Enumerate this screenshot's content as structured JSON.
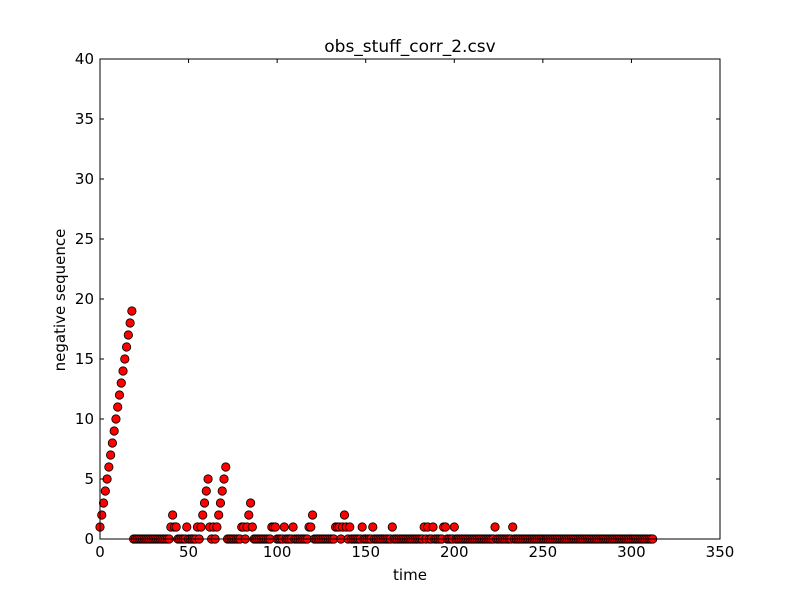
{
  "chart_data": {
    "type": "scatter",
    "title": "obs_stuff_corr_2.csv",
    "xlabel": "time",
    "ylabel": "negative sequence",
    "xlim": [
      0,
      350
    ],
    "ylim": [
      0,
      40
    ],
    "xticks": [
      0,
      50,
      100,
      150,
      200,
      250,
      300,
      350
    ],
    "yticks": [
      0,
      5,
      10,
      15,
      20,
      25,
      30,
      35,
      40
    ],
    "marker_color": "#ff0000",
    "marker_edge": "#000000",
    "grid": false,
    "series": [
      {
        "x": [
          0,
          1,
          2,
          3,
          4,
          5,
          6,
          7,
          8,
          9,
          10,
          11,
          12,
          13,
          14,
          15,
          16,
          17,
          18,
          19,
          20,
          21,
          22,
          23,
          24,
          25,
          26,
          27,
          28,
          29,
          30,
          31,
          32,
          33,
          34,
          35,
          36,
          37,
          38,
          39,
          40,
          41,
          42,
          43,
          44,
          45,
          46,
          47,
          48,
          49,
          50,
          51,
          52,
          53,
          54,
          55,
          56,
          57,
          58,
          59,
          60,
          61,
          62,
          63,
          64,
          65,
          66,
          67,
          68,
          69,
          70,
          71,
          72,
          73,
          74,
          75,
          76,
          77,
          78,
          79,
          80,
          81,
          82,
          83,
          84,
          85,
          86,
          87,
          88,
          89,
          90,
          91,
          92,
          93,
          94,
          95,
          96,
          97,
          98,
          99,
          100,
          101,
          102,
          103,
          104,
          105,
          106,
          107,
          108,
          109,
          110,
          111,
          112,
          113,
          114,
          115,
          116,
          117,
          118,
          119,
          120,
          121,
          122,
          123,
          124,
          125,
          126,
          127,
          128,
          129,
          130,
          131,
          132,
          133,
          134,
          135,
          136,
          137,
          138,
          139,
          140,
          141,
          142,
          143,
          144,
          145,
          146,
          147,
          148,
          149,
          150,
          151,
          152,
          153,
          154,
          155,
          156,
          157,
          158,
          159,
          160,
          161,
          162,
          163,
          164,
          165,
          166,
          167,
          168,
          169,
          170,
          171,
          172,
          173,
          174,
          175,
          176,
          177,
          178,
          179,
          180,
          181,
          182,
          183,
          184,
          185,
          186,
          187,
          188,
          189,
          190,
          191,
          192,
          193,
          194,
          195,
          196,
          197,
          198,
          199,
          200,
          201,
          202,
          203,
          204,
          205,
          206,
          207,
          208,
          209,
          210,
          211,
          212,
          213,
          214,
          215,
          216,
          217,
          218,
          219,
          220,
          221,
          222,
          223,
          224,
          225,
          226,
          227,
          228,
          229,
          230,
          231,
          232,
          233,
          234,
          235,
          236,
          237,
          238,
          239,
          240,
          241,
          242,
          243,
          244,
          245,
          246,
          247,
          248,
          249,
          250,
          251,
          252,
          253,
          254,
          255,
          256,
          257,
          258,
          259,
          260,
          261,
          262,
          263,
          264,
          265,
          266,
          267,
          268,
          269,
          270,
          271,
          272,
          273,
          274,
          275,
          276,
          277,
          278,
          279,
          280,
          281,
          282,
          283,
          284,
          285,
          286,
          287,
          288,
          289,
          290,
          291,
          292,
          293,
          294,
          295,
          296,
          297,
          298,
          299,
          300,
          301,
          302,
          303,
          304,
          305,
          306,
          307,
          308,
          309,
          310,
          311,
          312
        ],
        "y": [
          1,
          2,
          3,
          4,
          5,
          6,
          7,
          8,
          9,
          10,
          11,
          12,
          13,
          14,
          15,
          16,
          17,
          18,
          19,
          0,
          0,
          0,
          0,
          0,
          0,
          0,
          0,
          0,
          0,
          0,
          0,
          0,
          0,
          0,
          0,
          0,
          0,
          0,
          0,
          0,
          1,
          2,
          1,
          1,
          0,
          0,
          0,
          0,
          0,
          1,
          0,
          0,
          0,
          0,
          0,
          1,
          0,
          1,
          2,
          3,
          4,
          5,
          1,
          0,
          1,
          0,
          1,
          2,
          3,
          4,
          5,
          6,
          0,
          0,
          0,
          0,
          0,
          0,
          0,
          0,
          1,
          1,
          0,
          1,
          2,
          3,
          1,
          0,
          0,
          0,
          0,
          0,
          0,
          0,
          0,
          0,
          0,
          1,
          1,
          1,
          0,
          0,
          0,
          0,
          1,
          0,
          0,
          0,
          0,
          1,
          0,
          0,
          0,
          0,
          0,
          0,
          0,
          0,
          1,
          1,
          2,
          0,
          0,
          0,
          0,
          0,
          0,
          0,
          0,
          0,
          0,
          0,
          0,
          1,
          1,
          1,
          0,
          1,
          2,
          1,
          0,
          1,
          0,
          0,
          0,
          0,
          0,
          0,
          1,
          0,
          0,
          0,
          0,
          0,
          1,
          0,
          0,
          0,
          0,
          0,
          0,
          0,
          0,
          0,
          0,
          1,
          0,
          0,
          0,
          0,
          0,
          0,
          0,
          0,
          0,
          0,
          0,
          0,
          0,
          0,
          0,
          0,
          0,
          1,
          0,
          1,
          0,
          0,
          1,
          0,
          0,
          0,
          0,
          0,
          1,
          1,
          0,
          0,
          0,
          0,
          1,
          0,
          0,
          0,
          0,
          0,
          0,
          0,
          0,
          0,
          0,
          0,
          0,
          0,
          0,
          0,
          0,
          0,
          0,
          0,
          0,
          0,
          0,
          1,
          0,
          0,
          0,
          0,
          0,
          0,
          0,
          0,
          0,
          1,
          0,
          0,
          0,
          0,
          0,
          0,
          0,
          0,
          0,
          0,
          0,
          0,
          0,
          0,
          0,
          0,
          0,
          0,
          0,
          0,
          0,
          0,
          0,
          0,
          0,
          0,
          0,
          0,
          0,
          0,
          0,
          0,
          0,
          0,
          0,
          0,
          0,
          0,
          0,
          0,
          0,
          0,
          0,
          0,
          0,
          0,
          0,
          0,
          0,
          0,
          0,
          0,
          0,
          0,
          0,
          0,
          0,
          0,
          0,
          0,
          0,
          0,
          0,
          0,
          0,
          0,
          0,
          0,
          0,
          0,
          0,
          0,
          0,
          0,
          0,
          0,
          0,
          0,
          0
        ]
      }
    ]
  }
}
